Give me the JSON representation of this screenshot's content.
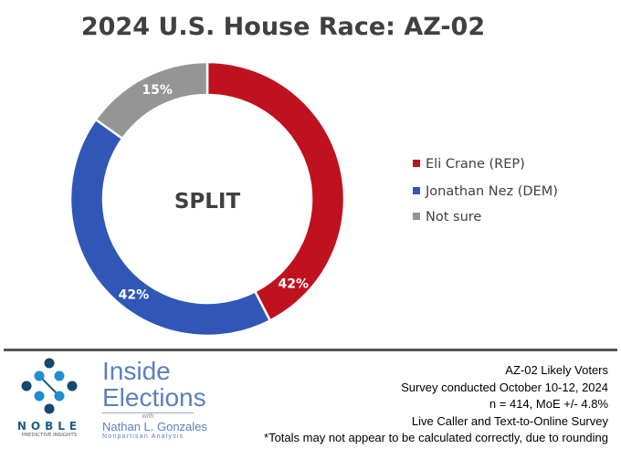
{
  "chart_data": {
    "type": "pie",
    "title": "2024 U.S. House Race: AZ-02",
    "center_label": "SPLIT",
    "donut": true,
    "legend_position": "right",
    "slices": [
      {
        "name": "Eli Crane (REP)",
        "value": 42,
        "label": "42%",
        "color": "#c0111f"
      },
      {
        "name": "Jonathan Nez (DEM)",
        "value": 42,
        "label": "42%",
        "color": "#3057b7"
      },
      {
        "name": "Not sure",
        "value": 15,
        "label": "15%",
        "color": "#959595"
      }
    ]
  },
  "footer": {
    "notes": [
      "AZ-02 Likely Voters",
      "Survey conducted October 10-12, 2024",
      "n = 414, MoE +/- 4.8%",
      "Live Caller and Text-to-Online Survey",
      "*Totals may not appear to be calculated correctly, due to rounding"
    ],
    "logo_noble": {
      "name": "NOBLE",
      "sub": "PREDICTIVE INSIGHTS"
    },
    "logo_inside": {
      "line1": "Inside",
      "line2": "Elections",
      "with": "with",
      "name": "Nathan L. Gonzales",
      "tagline": "Nonpartisan Analysis"
    }
  }
}
